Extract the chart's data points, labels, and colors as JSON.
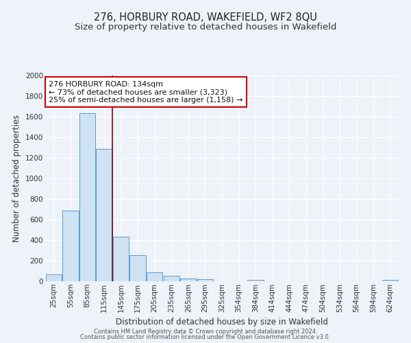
{
  "title": "276, HORBURY ROAD, WAKEFIELD, WF2 8QU",
  "subtitle": "Size of property relative to detached houses in Wakefield",
  "xlabel": "Distribution of detached houses by size in Wakefield",
  "ylabel": "Number of detached properties",
  "bar_color": "#cfe2f3",
  "bar_edge_color": "#5b9bd5",
  "background_color": "#eef2f9",
  "grid_color": "#ffffff",
  "categories": [
    "25sqm",
    "55sqm",
    "85sqm",
    "115sqm",
    "145sqm",
    "175sqm",
    "205sqm",
    "235sqm",
    "265sqm",
    "295sqm",
    "325sqm",
    "354sqm",
    "384sqm",
    "414sqm",
    "444sqm",
    "474sqm",
    "504sqm",
    "534sqm",
    "564sqm",
    "594sqm",
    "624sqm"
  ],
  "values": [
    65,
    690,
    1635,
    1285,
    435,
    252,
    88,
    52,
    25,
    20,
    0,
    0,
    15,
    0,
    0,
    0,
    0,
    0,
    0,
    0,
    15
  ],
  "ylim": [
    0,
    2000
  ],
  "yticks": [
    0,
    200,
    400,
    600,
    800,
    1000,
    1200,
    1400,
    1600,
    1800,
    2000
  ],
  "vline_pos": 3.47,
  "vline_color": "#8b0000",
  "annotation_title": "276 HORBURY ROAD: 134sqm",
  "annotation_line1": "← 73% of detached houses are smaller (3,323)",
  "annotation_line2": "25% of semi-detached houses are larger (1,158) →",
  "annotation_box_color": "#ffffff",
  "annotation_box_edge": "#cc0000",
  "footer_line1": "Contains HM Land Registry data © Crown copyright and database right 2024.",
  "footer_line2": "Contains public sector information licensed under the Open Government Licence v3.0.",
  "title_fontsize": 10.5,
  "subtitle_fontsize": 9.5,
  "axis_label_fontsize": 8.5,
  "tick_fontsize": 7.5,
  "annotation_fontsize": 8,
  "footer_fontsize": 6
}
